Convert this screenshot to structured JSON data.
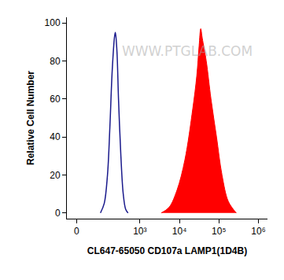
{
  "chart_data": {
    "type": "histogram",
    "x_label": "CL647-65050 CD107a LAMP1(1D4B)",
    "y_label": "Relative Cell Number",
    "annotations": [
      "WWW.PTGLAB.COM"
    ],
    "xlim": [
      -30,
      1700000
    ],
    "xticks": [
      0,
      {
        "value": 1000,
        "label": "10³"
      },
      {
        "value": 10000,
        "label": "10⁴"
      },
      {
        "value": 100000,
        "label": "10⁵"
      },
      {
        "value": 1000000,
        "label": "10⁶"
      }
    ],
    "ylim": [
      -3,
      103
    ],
    "yticks": [
      0,
      20,
      40,
      60,
      80,
      100
    ],
    "grid": false,
    "series": [
      {
        "type": "line",
        "color": "#1a1a8c",
        "x": [
          94,
          120,
          147,
          170,
          196,
          226,
          237,
          260,
          285,
          328,
          377,
          434,
          499
        ],
        "values": [
          0,
          5,
          20,
          45,
          75,
          93,
          95,
          85,
          60,
          30,
          10,
          2,
          0
        ]
      },
      {
        "type": "area",
        "color": "#ff0000",
        "x": [
          3460,
          5490,
          8700,
          13780,
          21850,
          27500,
          31600,
          34700,
          38000,
          47900,
          63100,
          87200,
          120000,
          174000,
          276000
        ],
        "values": [
          0,
          3,
          12,
          28,
          55,
          72,
          88,
          97,
          92,
          80,
          60,
          40,
          20,
          6,
          0
        ]
      }
    ]
  }
}
